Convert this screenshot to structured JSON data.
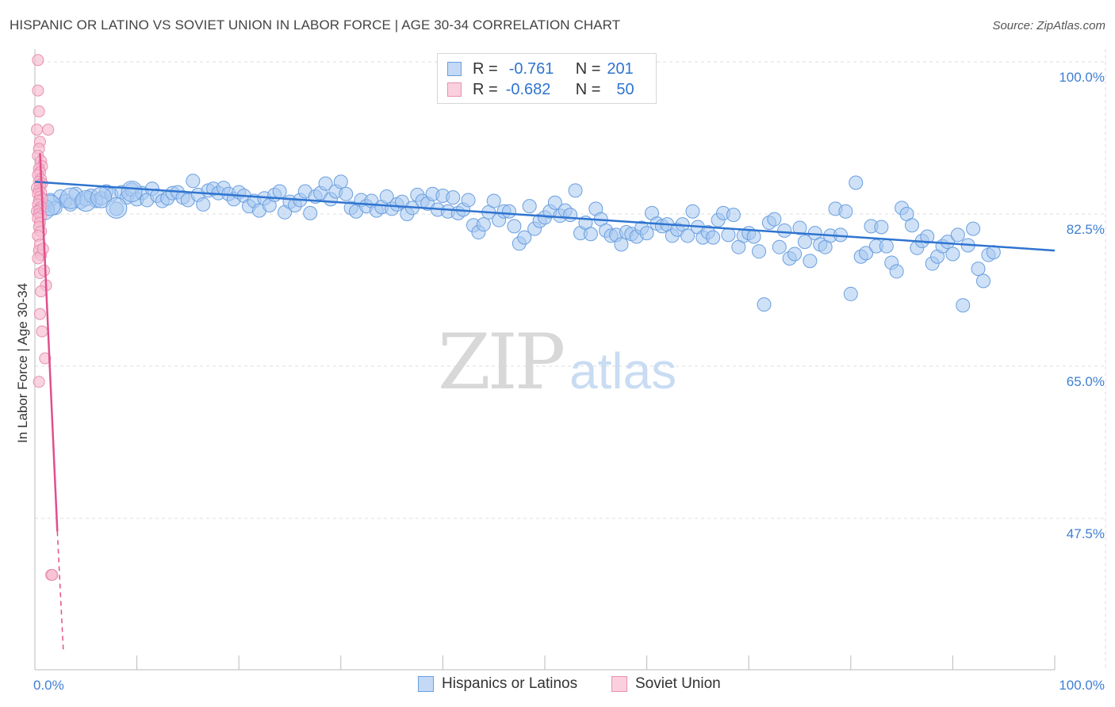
{
  "header": {
    "title": "HISPANIC OR LATINO VS SOVIET UNION IN LABOR FORCE | AGE 30-34 CORRELATION CHART",
    "source": "Source: ZipAtlas.com"
  },
  "watermark": {
    "zip": "ZIP",
    "atlas": "atlas"
  },
  "legend": {
    "r_label": "R =",
    "n_label": "N =",
    "rows": [
      {
        "r": "-0.761",
        "n": "201",
        "color": "#a8c8f0",
        "border": "#6a9fe0"
      },
      {
        "r": "-0.682",
        "n": "50",
        "color": "#f8bcd0",
        "border": "#e890b0"
      }
    ]
  },
  "chart_data": {
    "type": "scatter",
    "title": "HISPANIC OR LATINO VS SOVIET UNION IN LABOR FORCE | AGE 30-34 CORRELATION CHART",
    "xlabel": "",
    "ylabel": "In Labor Force | Age 30-34",
    "xlim": [
      0,
      100
    ],
    "ylim": [
      32,
      101
    ],
    "x_tick_labels": [
      "0.0%",
      "100.0%"
    ],
    "y_ticks": [
      47.5,
      65.0,
      82.5,
      100.0
    ],
    "y_tick_labels": [
      "47.5%",
      "65.0%",
      "82.5%",
      "100.0%"
    ],
    "grid": true,
    "legend_position": "bottom-center",
    "series": [
      {
        "name": "Hispanics or Latinos",
        "color": "#a8c8f0",
        "edge": "#6a9fe0",
        "trend": {
          "x": [
            0,
            100
          ],
          "y": [
            86.2,
            78.3
          ],
          "color": "#2f74d0"
        },
        "points": [
          [
            1,
            83.4
          ],
          [
            1.5,
            84.1
          ],
          [
            2,
            83.2
          ],
          [
            2.5,
            84.5
          ],
          [
            3,
            84.0
          ],
          [
            3.5,
            83.6
          ],
          [
            4,
            84.8
          ],
          [
            4.5,
            83.9
          ],
          [
            5,
            84.2
          ],
          [
            5.5,
            84.6
          ],
          [
            6,
            84.0
          ],
          [
            6.5,
            84.3
          ],
          [
            7,
            85.1
          ],
          [
            7.5,
            84.7
          ],
          [
            8,
            83.1
          ],
          [
            8.5,
            85.0
          ],
          [
            9,
            84.4
          ],
          [
            9.5,
            85.3
          ],
          [
            10,
            84.2
          ],
          [
            10.5,
            84.9
          ],
          [
            11,
            84.1
          ],
          [
            11.5,
            85.4
          ],
          [
            12,
            84.6
          ],
          [
            12.5,
            84.0
          ],
          [
            13,
            84.3
          ],
          [
            13.5,
            84.9
          ],
          [
            14,
            85.0
          ],
          [
            14.5,
            84.4
          ],
          [
            15,
            84.1
          ],
          [
            15.5,
            86.3
          ],
          [
            16,
            84.7
          ],
          [
            16.5,
            83.6
          ],
          [
            17,
            85.2
          ],
          [
            17.5,
            85.4
          ],
          [
            18,
            84.9
          ],
          [
            18.5,
            85.5
          ],
          [
            19,
            84.8
          ],
          [
            19.5,
            84.2
          ],
          [
            20,
            85.0
          ],
          [
            20.5,
            84.6
          ],
          [
            21,
            83.4
          ],
          [
            21.5,
            84.0
          ],
          [
            22,
            82.9
          ],
          [
            22.5,
            84.3
          ],
          [
            23,
            83.5
          ],
          [
            23.5,
            84.7
          ],
          [
            24,
            85.1
          ],
          [
            24.5,
            82.7
          ],
          [
            25,
            83.9
          ],
          [
            25.5,
            83.5
          ],
          [
            26,
            84.1
          ],
          [
            26.5,
            85.1
          ],
          [
            27,
            82.6
          ],
          [
            27.5,
            84.5
          ],
          [
            28,
            84.9
          ],
          [
            28.5,
            86.0
          ],
          [
            29,
            84.2
          ],
          [
            29.5,
            85.1
          ],
          [
            30,
            86.2
          ],
          [
            30.5,
            84.8
          ],
          [
            31,
            83.2
          ],
          [
            31.5,
            82.8
          ],
          [
            32,
            84.1
          ],
          [
            32.5,
            83.4
          ],
          [
            33,
            84.0
          ],
          [
            33.5,
            82.9
          ],
          [
            34,
            83.3
          ],
          [
            34.5,
            84.5
          ],
          [
            35,
            83.1
          ],
          [
            35.5,
            83.6
          ],
          [
            36,
            83.9
          ],
          [
            36.5,
            82.5
          ],
          [
            37,
            83.2
          ],
          [
            37.5,
            84.7
          ],
          [
            38,
            84.0
          ],
          [
            38.5,
            83.7
          ],
          [
            39,
            84.8
          ],
          [
            39.5,
            83.0
          ],
          [
            40,
            84.6
          ],
          [
            40.5,
            82.8
          ],
          [
            41,
            84.4
          ],
          [
            41.5,
            82.6
          ],
          [
            42,
            83.0
          ],
          [
            42.5,
            84.1
          ],
          [
            43,
            81.2
          ],
          [
            43.5,
            80.4
          ],
          [
            44,
            81.3
          ],
          [
            44.5,
            82.7
          ],
          [
            45,
            84.0
          ],
          [
            45.5,
            81.8
          ],
          [
            46,
            82.8
          ],
          [
            46.5,
            82.8
          ],
          [
            47,
            81.1
          ],
          [
            47.5,
            79.1
          ],
          [
            48,
            79.8
          ],
          [
            48.5,
            83.4
          ],
          [
            49,
            80.8
          ],
          [
            49.5,
            81.7
          ],
          [
            50,
            82.1
          ],
          [
            50.5,
            82.8
          ],
          [
            51,
            83.8
          ],
          [
            51.5,
            82.3
          ],
          [
            52,
            82.9
          ],
          [
            52.5,
            82.4
          ],
          [
            53,
            85.2
          ],
          [
            53.5,
            80.3
          ],
          [
            54,
            81.5
          ],
          [
            54.5,
            80.2
          ],
          [
            55,
            83.1
          ],
          [
            55.5,
            81.9
          ],
          [
            56,
            80.6
          ],
          [
            56.5,
            80.0
          ],
          [
            57,
            80.1
          ],
          [
            57.5,
            79.0
          ],
          [
            58,
            80.4
          ],
          [
            58.5,
            80.2
          ],
          [
            59,
            79.9
          ],
          [
            59.5,
            80.9
          ],
          [
            60,
            80.3
          ],
          [
            60.5,
            82.6
          ],
          [
            61,
            81.4
          ],
          [
            61.5,
            81.1
          ],
          [
            62,
            81.3
          ],
          [
            62.5,
            80.0
          ],
          [
            63,
            80.7
          ],
          [
            63.5,
            81.3
          ],
          [
            64,
            80.0
          ],
          [
            64.5,
            82.8
          ],
          [
            65,
            81.0
          ],
          [
            65.5,
            79.8
          ],
          [
            66,
            80.4
          ],
          [
            66.5,
            79.8
          ],
          [
            67,
            81.8
          ],
          [
            67.5,
            82.6
          ],
          [
            68,
            80.1
          ],
          [
            68.5,
            82.4
          ],
          [
            69,
            78.7
          ],
          [
            69.5,
            80.0
          ],
          [
            70,
            80.3
          ],
          [
            70.5,
            79.9
          ],
          [
            71,
            78.2
          ],
          [
            71.5,
            72.1
          ],
          [
            72,
            81.5
          ],
          [
            72.5,
            81.9
          ],
          [
            73,
            78.7
          ],
          [
            73.5,
            80.6
          ],
          [
            74,
            77.4
          ],
          [
            74.5,
            77.9
          ],
          [
            75,
            80.9
          ],
          [
            75.5,
            79.3
          ],
          [
            76,
            77.1
          ],
          [
            76.5,
            80.3
          ],
          [
            77,
            79.0
          ],
          [
            77.5,
            78.7
          ],
          [
            78,
            80.0
          ],
          [
            78.5,
            83.1
          ],
          [
            79,
            80.1
          ],
          [
            79.5,
            82.8
          ],
          [
            80,
            73.3
          ],
          [
            80.5,
            86.1
          ],
          [
            81,
            77.6
          ],
          [
            81.5,
            78.0
          ],
          [
            82,
            81.1
          ],
          [
            82.5,
            78.8
          ],
          [
            83,
            81.0
          ],
          [
            83.5,
            78.8
          ],
          [
            84,
            76.9
          ],
          [
            84.5,
            75.9
          ],
          [
            85,
            83.2
          ],
          [
            85.5,
            82.5
          ],
          [
            86,
            81.2
          ],
          [
            86.5,
            78.6
          ],
          [
            87,
            79.4
          ],
          [
            87.5,
            79.9
          ],
          [
            88,
            76.8
          ],
          [
            88.5,
            77.6
          ],
          [
            89,
            78.8
          ],
          [
            89.5,
            79.3
          ],
          [
            90,
            77.9
          ],
          [
            90.5,
            80.1
          ],
          [
            91,
            72.0
          ],
          [
            91.5,
            78.9
          ],
          [
            92,
            80.8
          ],
          [
            92.5,
            76.2
          ],
          [
            93,
            74.8
          ],
          [
            93.5,
            77.8
          ],
          [
            94,
            78.1
          ]
        ],
        "large_points": [
          [
            0.9,
            83.0
          ],
          [
            1.5,
            83.5
          ],
          [
            3.5,
            84.3
          ],
          [
            5,
            84.0
          ],
          [
            6.5,
            84.4
          ],
          [
            8,
            83.2
          ],
          [
            9.5,
            85.1
          ]
        ]
      },
      {
        "name": "Soviet Union",
        "color": "#f8bcd0",
        "edge": "#e890b0",
        "trend": {
          "x": [
            0.5,
            2.2
          ],
          "y": [
            89.5,
            46.0
          ],
          "color": "#e0508a",
          "dashed_to": [
            2.8,
            32
          ]
        },
        "points": [
          [
            0.3,
            100.2
          ],
          [
            0.3,
            96.7
          ],
          [
            0.4,
            94.3
          ],
          [
            0.2,
            92.2
          ],
          [
            1.3,
            92.2
          ],
          [
            0.5,
            90.8
          ],
          [
            0.4,
            90.0
          ],
          [
            0.3,
            89.2
          ],
          [
            0.6,
            88.6
          ],
          [
            0.7,
            88.0
          ],
          [
            0.4,
            87.7
          ],
          [
            0.5,
            87.3
          ],
          [
            0.3,
            87.0
          ],
          [
            0.6,
            86.5
          ],
          [
            0.4,
            86.2
          ],
          [
            0.7,
            86.0
          ],
          [
            0.5,
            85.8
          ],
          [
            0.2,
            85.5
          ],
          [
            0.4,
            85.2
          ],
          [
            0.6,
            85.0
          ],
          [
            0.3,
            84.8
          ],
          [
            0.5,
            84.5
          ],
          [
            0.7,
            84.2
          ],
          [
            0.4,
            84.0
          ],
          [
            0.3,
            83.6
          ],
          [
            0.6,
            83.3
          ],
          [
            0.5,
            83.0
          ],
          [
            0.2,
            82.8
          ],
          [
            0.4,
            82.5
          ],
          [
            0.6,
            82.3
          ],
          [
            0.3,
            82.0
          ],
          [
            0.5,
            81.5
          ],
          [
            0.4,
            81.0
          ],
          [
            0.6,
            80.5
          ],
          [
            0.3,
            80.0
          ],
          [
            0.5,
            79.0
          ],
          [
            0.4,
            78.3
          ],
          [
            0.6,
            77.8
          ],
          [
            0.3,
            77.4
          ],
          [
            0.5,
            75.7
          ],
          [
            1.1,
            74.3
          ],
          [
            0.6,
            73.6
          ],
          [
            0.7,
            69.0
          ],
          [
            1.0,
            65.9
          ],
          [
            0.4,
            63.2
          ],
          [
            1.6,
            41.0
          ],
          [
            1.7,
            41.0
          ],
          [
            0.8,
            78.5
          ],
          [
            0.9,
            76.0
          ],
          [
            0.5,
            71.0
          ]
        ]
      }
    ]
  },
  "bottom_legend": [
    {
      "label": "Hispanics or Latinos"
    },
    {
      "label": "Soviet Union"
    }
  ]
}
